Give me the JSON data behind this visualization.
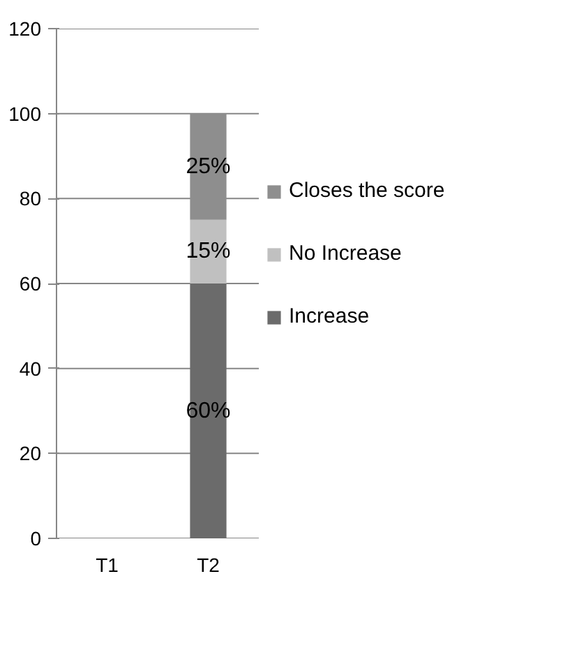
{
  "chart_data": {
    "type": "bar",
    "stacked": true,
    "categories": [
      "T1",
      "T2"
    ],
    "series": [
      {
        "name": "Increase",
        "color": "#6b6b6b",
        "values": [
          null,
          60
        ],
        "value_labels": [
          null,
          "60%"
        ]
      },
      {
        "name": "No Increase",
        "color": "#c0c0c0",
        "values": [
          null,
          15
        ],
        "value_labels": [
          null,
          "15%"
        ]
      },
      {
        "name": "Closes the score",
        "color": "#8e8e8e",
        "values": [
          null,
          25
        ],
        "value_labels": [
          null,
          "25%"
        ]
      }
    ],
    "ylim": [
      0,
      120
    ],
    "yticks": [
      0,
      20,
      40,
      60,
      80,
      100,
      120
    ],
    "grid": "y",
    "legend": "right"
  }
}
